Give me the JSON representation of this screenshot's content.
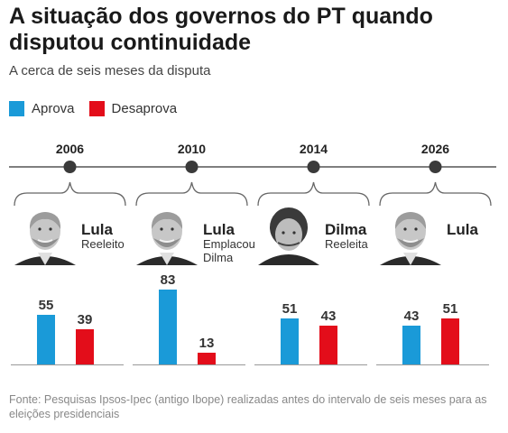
{
  "title": "A situação dos governos do PT quando disputou continuidade",
  "subtitle": "A cerca de seis meses da disputa",
  "legend": [
    {
      "label": "Aprova",
      "color": "#1a9ad8"
    },
    {
      "label": "Desaprova",
      "color": "#e30d1a"
    }
  ],
  "source": "Fonte: Pesquisas Ipsos-Ipec (antigo Ibope) realizadas antes do intervalo de seis meses para as eleições presidenciais",
  "chart_data": {
    "type": "bar",
    "categories": [
      "2006",
      "2010",
      "2014",
      "2026"
    ],
    "series": [
      {
        "name": "Aprova",
        "values": [
          55,
          83,
          51,
          43
        ],
        "color": "#1a9ad8"
      },
      {
        "name": "Desaprova",
        "values": [
          39,
          13,
          43,
          51
        ],
        "color": "#e30d1a"
      }
    ],
    "ylim": [
      0,
      100
    ],
    "candidates": [
      {
        "name": "Lula",
        "status": [
          "Reeleito"
        ],
        "avatar": "lula-portrait"
      },
      {
        "name": "Lula",
        "status": [
          "Emplacou",
          "Dilma"
        ],
        "avatar": "lula-portrait"
      },
      {
        "name": "Dilma",
        "status": [
          "Reeleita"
        ],
        "avatar": "dilma-portrait"
      },
      {
        "name": "Lula",
        "status": [],
        "avatar": "lula-portrait"
      }
    ]
  }
}
